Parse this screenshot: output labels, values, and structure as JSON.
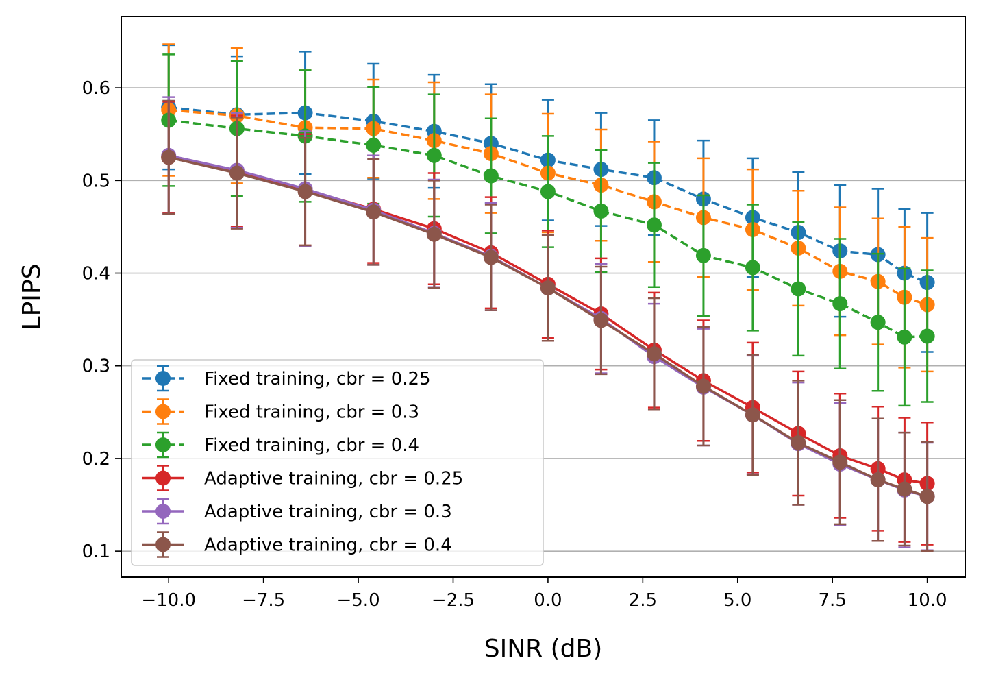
{
  "chart_data": {
    "type": "line",
    "title": "",
    "xlabel": "SINR (dB)",
    "ylabel": "LPIPS",
    "xlim": [
      -11.25,
      11.0
    ],
    "ylim": [
      0.072,
      0.677
    ],
    "xticks": [
      -10.0,
      -7.5,
      -5.0,
      -2.5,
      0.0,
      2.5,
      5.0,
      7.5,
      10.0
    ],
    "xtick_labels": [
      "−10.0",
      "−7.5",
      "−5.0",
      "−2.5",
      "0.0",
      "2.5",
      "5.0",
      "7.5",
      "10.0"
    ],
    "yticks": [
      0.1,
      0.2,
      0.3,
      0.4,
      0.5,
      0.6
    ],
    "ytick_labels": [
      "0.1",
      "0.2",
      "0.3",
      "0.4",
      "0.5",
      "0.6"
    ],
    "grid": "horizontal",
    "legend_position": "lower-left",
    "x": [
      -10.0,
      -8.2,
      -6.4,
      -4.6,
      -3.0,
      -1.5,
      0.0,
      1.4,
      2.8,
      4.1,
      5.4,
      6.6,
      7.7,
      8.7,
      9.4,
      10.0
    ],
    "series": [
      {
        "name": "Fixed training, cbr = 0.25",
        "color": "#1f77b4",
        "linestyle": "dashed",
        "values": [
          0.579,
          0.571,
          0.573,
          0.564,
          0.553,
          0.54,
          0.522,
          0.512,
          0.503,
          0.48,
          0.46,
          0.444,
          0.424,
          0.42,
          0.4,
          0.39
        ],
        "errors": [
          0.067,
          0.063,
          0.066,
          0.062,
          0.061,
          0.064,
          0.065,
          0.061,
          0.062,
          0.063,
          0.064,
          0.065,
          0.071,
          0.071,
          0.069,
          0.075
        ]
      },
      {
        "name": "Fixed training, cbr = 0.3",
        "color": "#ff7f0e",
        "linestyle": "dashed",
        "values": [
          0.576,
          0.57,
          0.557,
          0.556,
          0.543,
          0.529,
          0.508,
          0.495,
          0.477,
          0.46,
          0.447,
          0.427,
          0.402,
          0.391,
          0.374,
          0.366
        ],
        "errors": [
          0.071,
          0.073,
          0.062,
          0.053,
          0.063,
          0.064,
          0.064,
          0.06,
          0.065,
          0.064,
          0.065,
          0.062,
          0.069,
          0.068,
          0.076,
          0.072
        ]
      },
      {
        "name": "Fixed training, cbr = 0.4",
        "color": "#2ca02c",
        "linestyle": "dashed",
        "values": [
          0.565,
          0.556,
          0.548,
          0.538,
          0.527,
          0.505,
          0.488,
          0.467,
          0.452,
          0.419,
          0.406,
          0.383,
          0.367,
          0.347,
          0.331,
          0.332
        ],
        "errors": [
          0.071,
          0.073,
          0.071,
          0.063,
          0.066,
          0.062,
          0.06,
          0.066,
          0.067,
          0.065,
          0.068,
          0.072,
          0.07,
          0.074,
          0.074,
          0.071
        ]
      },
      {
        "name": "Adaptive training, cbr = 0.25",
        "color": "#d62728",
        "linestyle": "solid",
        "values": [
          0.525,
          0.51,
          0.49,
          0.469,
          0.448,
          0.422,
          0.388,
          0.356,
          0.317,
          0.284,
          0.255,
          0.227,
          0.203,
          0.189,
          0.177,
          0.173
        ],
        "errors": [
          0.06,
          0.06,
          0.06,
          0.058,
          0.06,
          0.06,
          0.058,
          0.06,
          0.062,
          0.065,
          0.07,
          0.067,
          0.067,
          0.067,
          0.067,
          0.066
        ]
      },
      {
        "name": "Adaptive training, cbr = 0.3",
        "color": "#9467bd",
        "linestyle": "solid",
        "values": [
          0.527,
          0.511,
          0.491,
          0.468,
          0.443,
          0.418,
          0.384,
          0.351,
          0.31,
          0.277,
          0.247,
          0.216,
          0.194,
          0.177,
          0.166,
          0.159
        ],
        "errors": [
          0.063,
          0.062,
          0.062,
          0.059,
          0.058,
          0.058,
          0.057,
          0.059,
          0.057,
          0.063,
          0.064,
          0.066,
          0.066,
          0.066,
          0.062,
          0.058
        ]
      },
      {
        "name": "Adaptive training, cbr = 0.4",
        "color": "#8c564b",
        "linestyle": "solid",
        "values": [
          0.525,
          0.508,
          0.488,
          0.466,
          0.442,
          0.417,
          0.384,
          0.349,
          0.313,
          0.278,
          0.247,
          0.217,
          0.196,
          0.177,
          0.167,
          0.159
        ],
        "errors": [
          0.061,
          0.06,
          0.058,
          0.057,
          0.058,
          0.057,
          0.057,
          0.058,
          0.06,
          0.064,
          0.065,
          0.067,
          0.067,
          0.066,
          0.061,
          0.059
        ]
      }
    ]
  }
}
